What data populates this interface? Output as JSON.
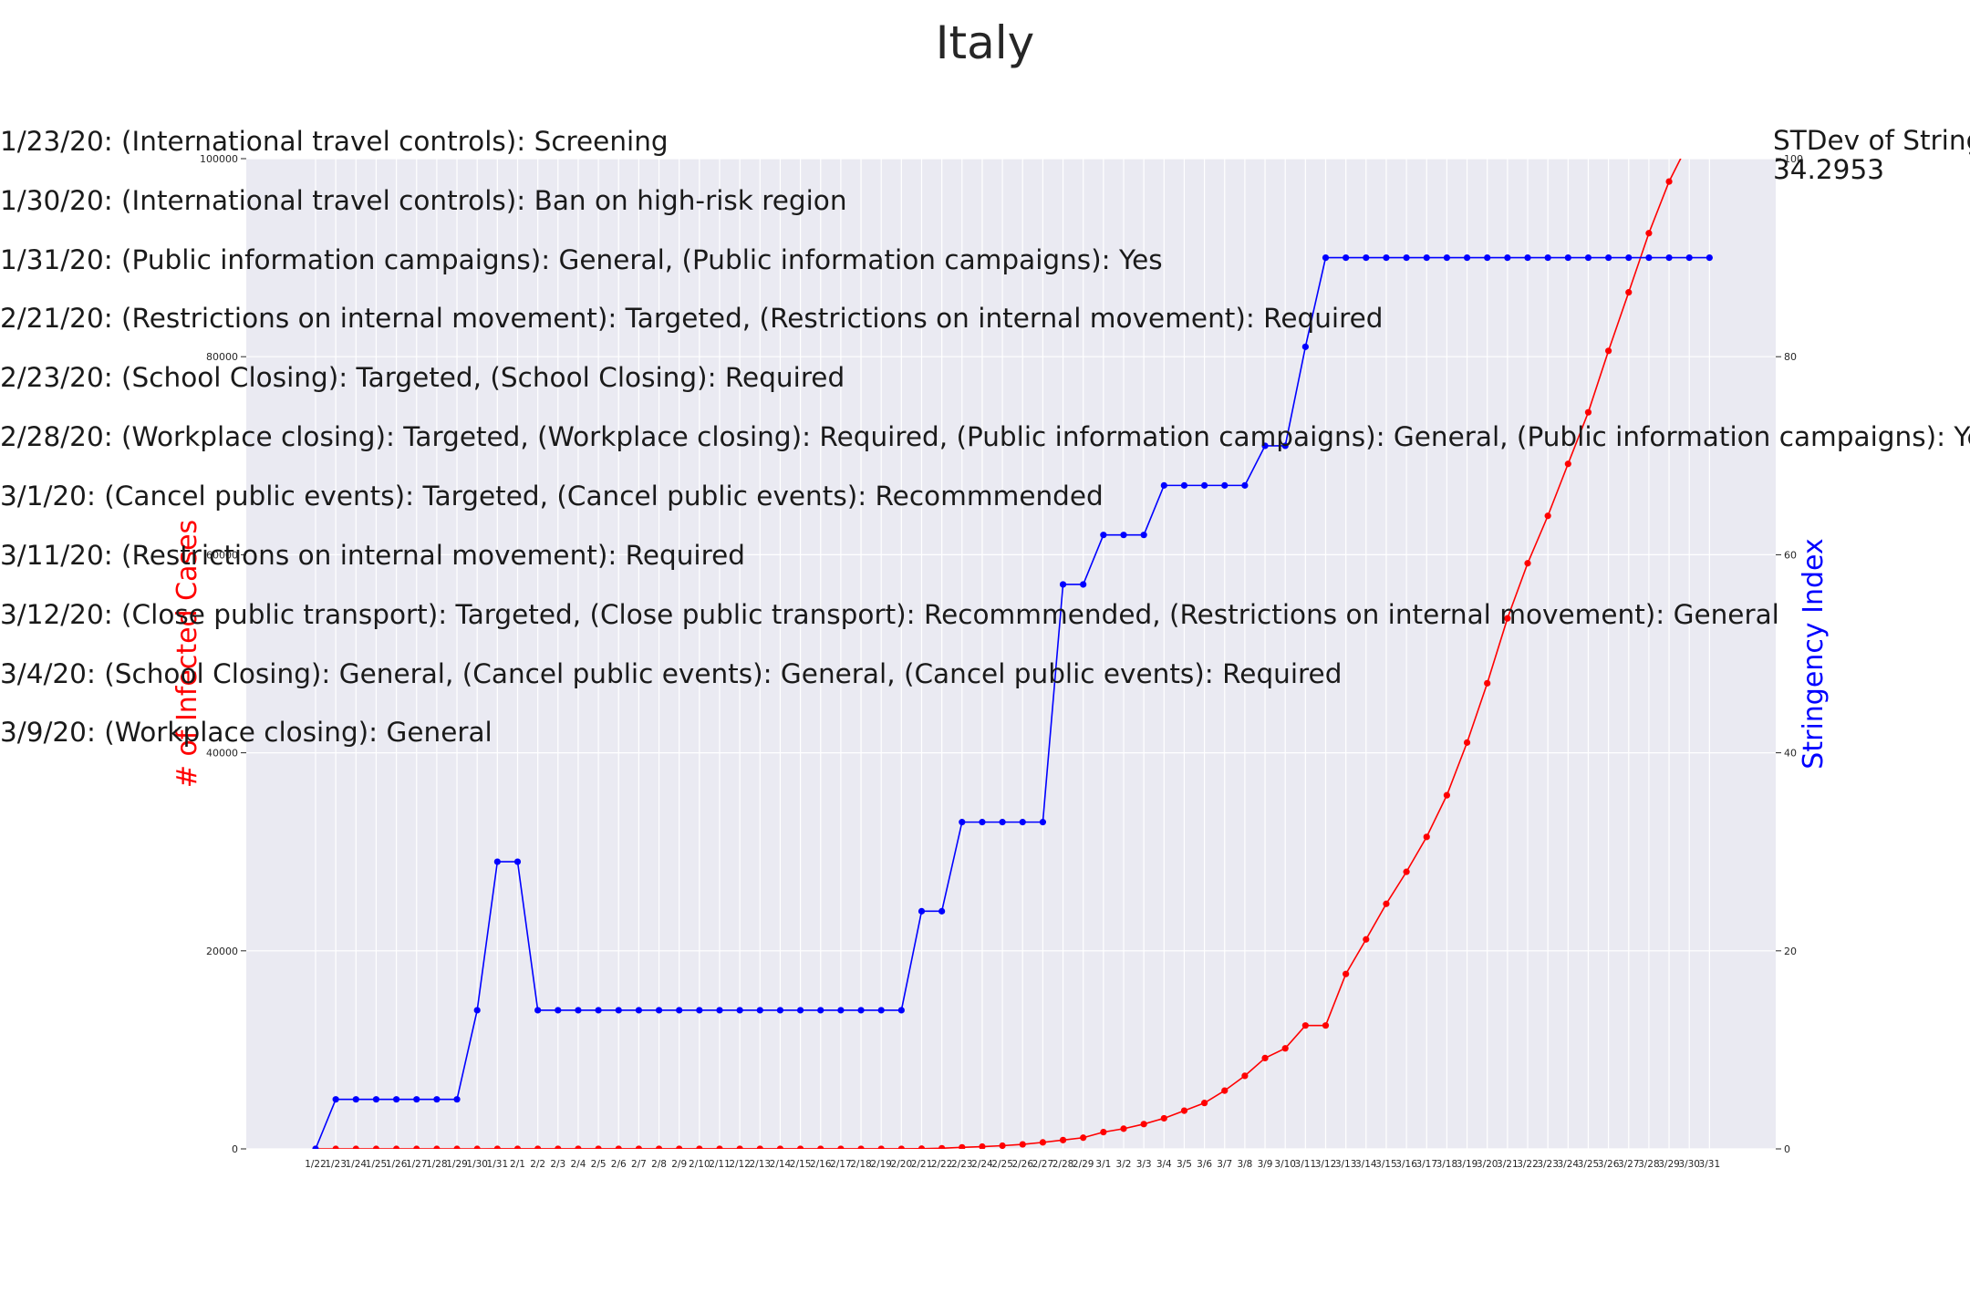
{
  "chart_data": {
    "type": "line",
    "title": "Italy",
    "x": [
      "1/22",
      "1/23",
      "1/24",
      "1/25",
      "1/26",
      "1/27",
      "1/28",
      "1/29",
      "1/30",
      "1/31",
      "2/1",
      "2/2",
      "2/3",
      "2/4",
      "2/5",
      "2/6",
      "2/7",
      "2/8",
      "2/9",
      "2/10",
      "2/11",
      "2/12",
      "2/13",
      "2/14",
      "2/15",
      "2/16",
      "2/17",
      "2/18",
      "2/19",
      "2/20",
      "2/21",
      "2/22",
      "2/23",
      "2/24",
      "2/25",
      "2/26",
      "2/27",
      "2/28",
      "2/29",
      "3/1",
      "3/2",
      "3/3",
      "3/4",
      "3/5",
      "3/6",
      "3/7",
      "3/8",
      "3/9",
      "3/10",
      "3/11",
      "3/12",
      "3/13",
      "3/14",
      "3/15",
      "3/16",
      "3/17",
      "3/18",
      "3/19",
      "3/20",
      "3/21",
      "3/22",
      "3/23",
      "3/24",
      "3/25",
      "3/26",
      "3/27",
      "3/28",
      "3/29",
      "3/30",
      "3/31"
    ],
    "ylabel_left": "# of Infected Cases",
    "ylabel_right": "Stringency Index",
    "ylim_left": [
      0,
      100000
    ],
    "ylim_right": [
      0,
      100
    ],
    "yticks_left": [
      0,
      20000,
      40000,
      60000,
      80000,
      100000
    ],
    "yticks_right": [
      0,
      20,
      40,
      60,
      80,
      100
    ],
    "grid": true,
    "series": [
      {
        "name": "# of Infected Cases",
        "axis": "left",
        "color": "#ff0000",
        "values": [
          0,
          0,
          0,
          0,
          0,
          0,
          0,
          0,
          0,
          2,
          2,
          2,
          2,
          2,
          2,
          2,
          3,
          3,
          3,
          3,
          3,
          3,
          3,
          3,
          3,
          3,
          3,
          3,
          3,
          3,
          20,
          62,
          155,
          229,
          322,
          453,
          655,
          888,
          1128,
          1694,
          2036,
          2502,
          3089,
          3858,
          4636,
          5883,
          7375,
          9172,
          10149,
          12462,
          12462,
          17660,
          21157,
          24747,
          27980,
          31506,
          35713,
          41035,
          47021,
          53578,
          59138,
          63927,
          69176,
          74386,
          80589,
          86498,
          92472,
          97689,
          101739,
          105792
        ]
      },
      {
        "name": "Stringency Index",
        "axis": "right",
        "color": "#0000ff",
        "values": [
          0,
          5,
          5,
          5,
          5,
          5,
          5,
          5,
          14,
          29,
          29,
          14,
          14,
          14,
          14,
          14,
          14,
          14,
          14,
          14,
          14,
          14,
          14,
          14,
          14,
          14,
          14,
          14,
          14,
          14,
          24,
          24,
          33,
          33,
          33,
          33,
          33,
          57,
          57,
          62,
          62,
          62,
          67,
          67,
          67,
          67,
          67,
          71,
          71,
          81,
          90,
          90,
          90,
          90,
          90,
          90,
          90,
          90,
          90,
          90,
          90,
          90,
          90,
          90,
          90,
          90,
          90,
          90,
          90,
          90
        ]
      }
    ]
  },
  "annotations": [
    "1/23/20: (International travel controls): Screening",
    "1/30/20: (International travel controls): Ban on high-risk region",
    "1/31/20: (Public information campaigns): General, (Public information campaigns): Yes",
    "2/21/20: (Restrictions on internal movement): Targeted, (Restrictions on internal movement): Required",
    "2/23/20: (School Closing): Targeted, (School Closing): Required",
    "2/28/20: (Workplace closing): Targeted, (Workplace closing): Required, (Public information campaigns): General, (Public information campaigns): Yes",
    "3/1/20: (Cancel public events): Targeted, (Cancel public events): Recommmended",
    "3/11/20: (Restrictions on internal movement): Required",
    "3/12/20: (Close public transport): Targeted, (Close public transport): Recommmended, (Restrictions on internal movement): General",
    "3/4/20: (School Closing): General, (Cancel public events): General, (Cancel public events): Required",
    "3/9/20: (Workplace closing): General"
  ],
  "stdev": {
    "label": "STDev of Stringency Index:",
    "value": "34.2953"
  }
}
